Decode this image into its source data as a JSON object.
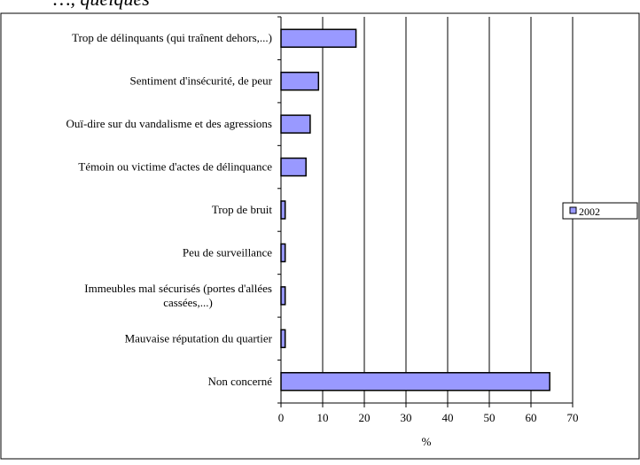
{
  "header_fragment": "…, quelques",
  "chart_data": {
    "type": "bar",
    "orientation": "horizontal",
    "categories": [
      "Trop de délinquants (qui traînent dehors,...)",
      "Sentiment d'insécurité, de peur",
      "Ouï-dire sur du vandalisme et des agressions",
      "Témoin ou victime d'actes de délinquance",
      "Trop de bruit",
      "Peu de surveillance",
      "Immeubles mal sécurisés (portes d'allées cassées,...)",
      "Mauvaise réputation du quartier",
      "Non concerné"
    ],
    "series": [
      {
        "name": "2002",
        "values": [
          18,
          9,
          7,
          6,
          1,
          1,
          1,
          1,
          64.5
        ],
        "color": "#9999ff"
      }
    ],
    "xlabel": "%",
    "xlim": [
      0,
      70
    ],
    "xticks": [
      0,
      10,
      20,
      30,
      40,
      50,
      60,
      70
    ],
    "grid": "vertical",
    "legend": "right"
  }
}
